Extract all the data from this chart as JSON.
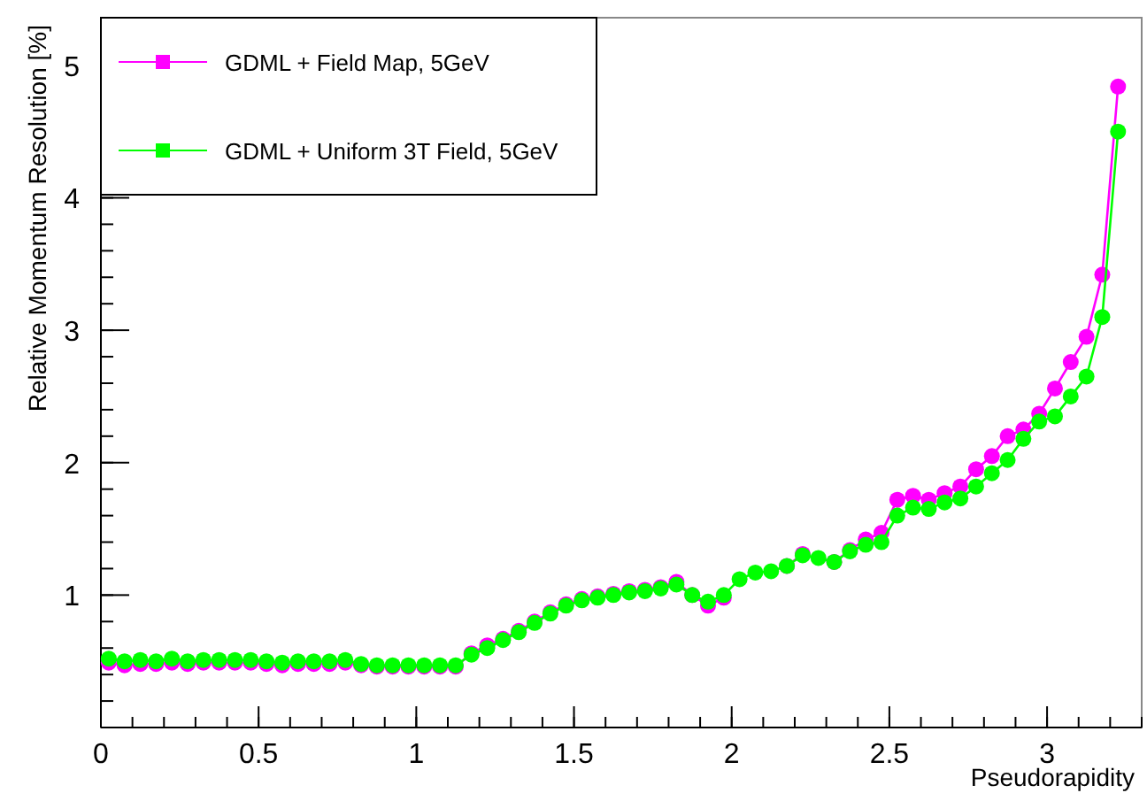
{
  "chart_data": {
    "type": "line",
    "xlabel": "Pseudorapidity",
    "ylabel": "Relative Momentum Resolution [%]",
    "x": [
      0.025,
      0.075,
      0.125,
      0.175,
      0.225,
      0.275,
      0.325,
      0.375,
      0.425,
      0.475,
      0.525,
      0.575,
      0.625,
      0.675,
      0.725,
      0.775,
      0.825,
      0.875,
      0.925,
      0.975,
      1.025,
      1.075,
      1.125,
      1.175,
      1.225,
      1.275,
      1.325,
      1.375,
      1.425,
      1.475,
      1.525,
      1.575,
      1.625,
      1.675,
      1.725,
      1.775,
      1.825,
      1.875,
      1.925,
      1.975,
      2.025,
      2.075,
      2.125,
      2.175,
      2.225,
      2.275,
      2.325,
      2.375,
      2.425,
      2.475,
      2.525,
      2.575,
      2.625,
      2.675,
      2.725,
      2.775,
      2.825,
      2.875,
      2.925,
      2.975,
      3.025,
      3.075,
      3.125,
      3.175,
      3.225
    ],
    "series": [
      {
        "name": "GDML + Field Map, 5GeV",
        "color": "#ff00ff",
        "values": [
          0.49,
          0.47,
          0.48,
          0.48,
          0.49,
          0.48,
          0.49,
          0.49,
          0.49,
          0.49,
          0.48,
          0.47,
          0.48,
          0.48,
          0.48,
          0.49,
          0.47,
          0.46,
          0.46,
          0.46,
          0.46,
          0.46,
          0.46,
          0.56,
          0.62,
          0.67,
          0.73,
          0.8,
          0.87,
          0.93,
          0.97,
          0.99,
          1.01,
          1.03,
          1.04,
          1.06,
          1.1,
          1.0,
          0.92,
          0.98,
          null,
          null,
          null,
          1.22,
          1.31,
          null,
          1.25,
          1.34,
          1.42,
          1.47,
          1.72,
          1.75,
          1.72,
          1.77,
          1.82,
          1.95,
          2.05,
          2.2,
          2.25,
          2.37,
          2.56,
          2.76,
          2.95,
          3.42,
          4.84
        ]
      },
      {
        "name": "GDML + Uniform 3T Field, 5GeV",
        "color": "#00ff00",
        "values": [
          0.52,
          0.5,
          0.51,
          0.5,
          0.52,
          0.5,
          0.51,
          0.51,
          0.51,
          0.51,
          0.5,
          0.49,
          0.5,
          0.5,
          0.5,
          0.51,
          0.48,
          0.47,
          0.47,
          0.47,
          0.47,
          0.47,
          0.47,
          0.55,
          0.6,
          0.66,
          0.72,
          0.79,
          0.86,
          0.92,
          0.96,
          0.98,
          1.0,
          1.02,
          1.03,
          1.05,
          1.08,
          1.0,
          0.95,
          1.0,
          1.12,
          1.17,
          1.18,
          1.22,
          1.3,
          1.28,
          1.25,
          1.33,
          1.38,
          1.4,
          1.6,
          1.66,
          1.65,
          1.7,
          1.73,
          1.82,
          1.92,
          2.02,
          2.18,
          2.31,
          2.35,
          2.5,
          2.65,
          3.1,
          4.5
        ]
      }
    ],
    "xlim": [
      0,
      3.3
    ],
    "ylim": [
      0,
      5.36
    ],
    "xticks": [
      0,
      0.5,
      1,
      1.5,
      2,
      2.5,
      3
    ],
    "yticks": [
      1,
      2,
      3,
      4,
      5
    ],
    "grid": false,
    "legend": "top left",
    "marker": "circle",
    "line_style": "solid"
  }
}
